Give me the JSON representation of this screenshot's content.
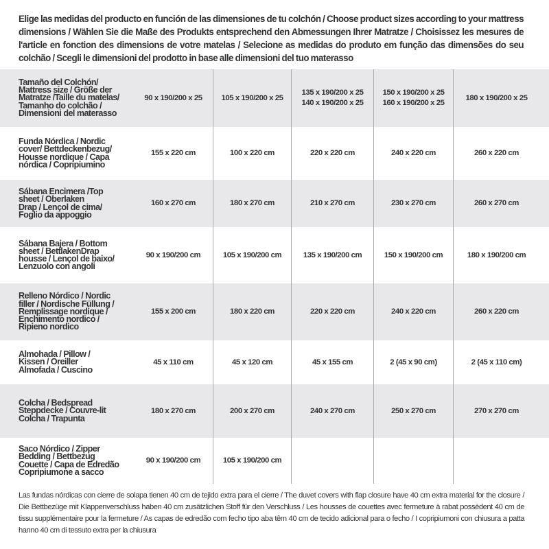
{
  "intro": "Elige las medidas del producto en función de las dimensiones de tu colchón / Choose product sizes according to your mattress dimensions / Wählen Sie die Maße des Produkts entsprechend den Abmessungen Ihrer Matratze / Choisissez les mesures de l'article en fonction des dimensions de votre matelas / Selecione as medidas do produto em função das dimensões do seu colchão / Scegli le dimensioni del prodotto in base alle dimensioni del tuo materasso",
  "table": {
    "rows": [
      {
        "label": "Tamaño del Colchón/\nMattress size / Größe der\nMatratze /Taille du matelas/\nTamanho do colchão /\nDimensioni del materasso",
        "values": [
          "90 x 190/200 x 25",
          "105 x 190/200 x 25",
          "135 x 190/200 x 25\n140 x 190/200 x 25",
          "150 x 190/200 x 25\n160 x 190/200 x 25",
          "180 x 190/200 x 25"
        ]
      },
      {
        "label": "Funda Nórdica /  Nordic\ncover/ Bettdeckenbezug/\nHousse nordique  / Capa\nnórdica / Copripiumino",
        "values": [
          "155 x 220 cm",
          "100 x 220 cm",
          "220 x 220 cm",
          "240 x 220 cm",
          "260 x 220 cm"
        ]
      },
      {
        "label": "Sábana Encimera /Top\nsheet / Oberlaken\nDrap / Lençol de cima/\nFoglio da appoggio",
        "values": [
          "160 x 270 cm",
          "180 x 270 cm",
          "210 x 270 cm",
          "230 x 270 cm",
          "260 x 270 cm"
        ]
      },
      {
        "label": "Sábana Bajera / Bottom\nsheet / BettlakenDrap\nhousse / Lençol de baixo/\nLenzuolo con angoli",
        "values": [
          "90 x 190/200 cm",
          "105 x 190/200 cm",
          "135 x 190/200 cm",
          "150 x 190/200 cm",
          "180 x 190/200 cm"
        ]
      },
      {
        "label": "Relleno Nórdico / Nordic\nfiller / Nordische Füllung /\nRemplissage nordique /\nEnchimento nordico /\nRipieno nordico",
        "values": [
          "155 x 200 cm",
          "180 x 220 cm",
          "220 x 220 cm",
          "240 x 220 cm",
          "260 x 220 cm"
        ]
      },
      {
        "label": "Almohada  / Pillow /\nKissen / Oreiller\nAlmofada / Cuscino",
        "values": [
          "45 x 110 cm",
          "45 x 120 cm",
          "45 x 155 cm",
          "2 (45 x 90 cm)",
          "2 (45 x 110 cm)"
        ]
      },
      {
        "label": "Colcha / Bedspread\nSteppdecke / Couvre-lit\nColcha / Trapunta",
        "values": [
          "180 x 270 cm",
          "200 x 270 cm",
          "240 x 270 cm",
          "250 x 270 cm",
          "270 x 270 cm"
        ]
      },
      {
        "label": "Saco Nórdico / Zipper\nBedding / Bettbezug\nCouette  / Capa de Edredão\nCopripiumone a sacco",
        "values": [
          "90 x 190/200 cm",
          "105 x 190/200 cm",
          "",
          "",
          ""
        ]
      }
    ]
  },
  "footer": "Las fundas nórdicas con cierre de solapa tienen 40 cm de tejido extra para el cierre  / The duvet covers with flap closure have 40 cm extra material for the closure / Die Bettbezüge mit Klappenverschluss haben 40 cm zusätzlichen Stoff für den Verschluss / Les housses de couettes avec fermeture à rabat possèdent 40 cm de tissu supplémentaire pour la fermeture / As capas de edredão com fecho tipo aba têm 40 cm de tecido adicional para o fecho / I copripiumoni con chiusura a patta hanno 40 cm di tessuto extra per la chiusura",
  "colors": {
    "row_alt": "#e8e8ea",
    "divider": "#aaaaaa",
    "text": "#333333"
  }
}
